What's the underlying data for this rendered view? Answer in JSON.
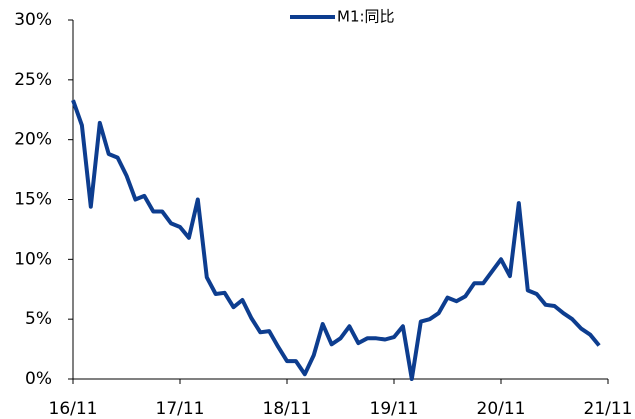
{
  "chart_data": {
    "type": "line",
    "categories": [
      "16/11",
      null,
      null,
      null,
      null,
      null,
      null,
      null,
      null,
      null,
      null,
      null,
      "17/11",
      null,
      null,
      null,
      null,
      null,
      null,
      null,
      null,
      null,
      null,
      null,
      "18/11",
      null,
      null,
      null,
      null,
      null,
      null,
      null,
      null,
      null,
      null,
      null,
      "19/11",
      null,
      null,
      null,
      null,
      null,
      null,
      null,
      null,
      null,
      null,
      null,
      "20/11",
      null,
      null,
      null,
      null,
      null,
      null,
      null,
      null,
      null,
      null,
      null,
      "21/11"
    ],
    "series": [
      {
        "name": "M1:同比",
        "color": "#0d3d8f",
        "values": [
          23.3,
          21.2,
          14.4,
          21.4,
          18.8,
          18.5,
          17.0,
          15.0,
          15.3,
          14.0,
          14.0,
          13.0,
          12.7,
          11.8,
          15.0,
          8.5,
          7.1,
          7.2,
          6.0,
          6.6,
          5.1,
          3.9,
          4.0,
          2.7,
          1.5,
          1.5,
          0.4,
          2.0,
          4.6,
          2.9,
          3.4,
          4.4,
          3.0,
          3.4,
          3.4,
          3.3,
          3.5,
          4.4,
          0.0,
          4.8,
          5.0,
          5.5,
          6.8,
          6.5,
          6.9,
          8.0,
          8.0,
          9.0,
          10.0,
          8.6,
          14.7,
          7.4,
          7.1,
          6.2,
          6.1,
          5.5,
          5.0,
          4.2,
          3.7,
          2.8,
          null
        ]
      }
    ],
    "ylim": [
      0,
      30
    ],
    "yticks": [
      {
        "value": 0,
        "label": "0%"
      },
      {
        "value": 5,
        "label": "5%"
      },
      {
        "value": 10,
        "label": "10%"
      },
      {
        "value": 15,
        "label": "15%"
      },
      {
        "value": 20,
        "label": "20%"
      },
      {
        "value": 25,
        "label": "25%"
      },
      {
        "value": 30,
        "label": "30%"
      }
    ],
    "legend": "top"
  }
}
